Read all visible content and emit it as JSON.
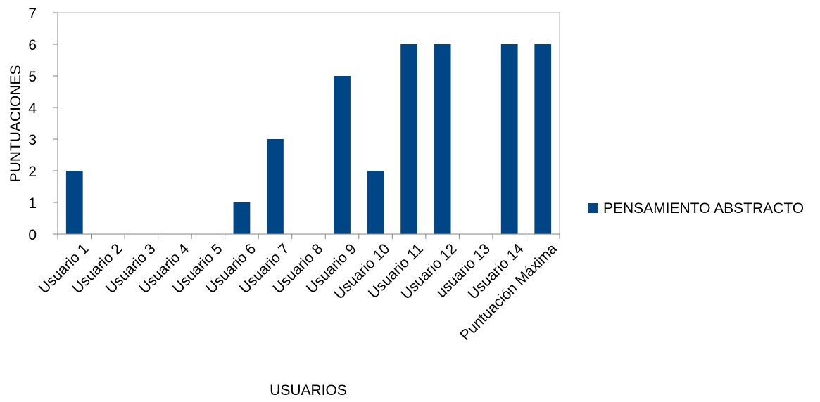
{
  "colors": {
    "bar": "#004586",
    "plot_border": "#b3b3b3",
    "axis": "#868686"
  },
  "chart_data": {
    "type": "bar",
    "categories": [
      "Usuario 1",
      "Usuario 2",
      "Usuario 3",
      "Usuario 4",
      "Usuario 5",
      "Usuario 6",
      "Usuario 7",
      "Usuario 8",
      "Usuario 9",
      "Usuario 10",
      "Usuario 11",
      "Usuario 12",
      "usuario 13",
      "Usuario 14",
      "Puntuación Máxima"
    ],
    "series": [
      {
        "name": "PENSAMIENTO ABSTRACTO",
        "values": [
          2,
          0,
          0,
          0,
          0,
          1,
          3,
          0,
          5,
          2,
          6,
          6,
          0,
          6,
          6
        ]
      }
    ],
    "title": "",
    "xlabel": "USUARIOS",
    "ylabel": "PUNTUACIONES",
    "ylim": [
      0,
      7
    ],
    "yticks": [
      0,
      1,
      2,
      3,
      4,
      5,
      6,
      7
    ],
    "grid": false,
    "legend_position": "right"
  }
}
